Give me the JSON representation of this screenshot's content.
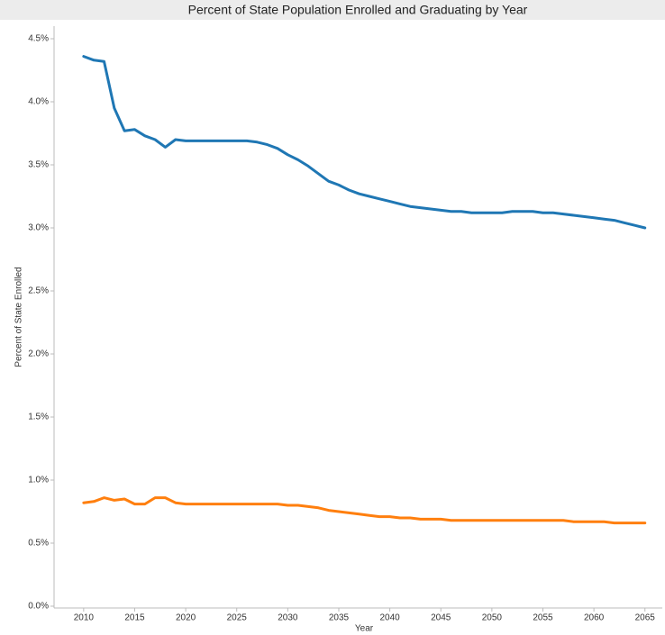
{
  "chart_data": {
    "type": "line",
    "title": "Percent of State Population Enrolled and Graduating by Year",
    "x_label": "Year",
    "y_label": "Percent of State Enrolled",
    "x": [
      2010,
      2011,
      2012,
      2013,
      2014,
      2015,
      2016,
      2017,
      2018,
      2019,
      2020,
      2021,
      2022,
      2023,
      2024,
      2025,
      2026,
      2027,
      2028,
      2029,
      2030,
      2031,
      2032,
      2033,
      2034,
      2035,
      2036,
      2037,
      2038,
      2039,
      2040,
      2041,
      2042,
      2043,
      2044,
      2045,
      2046,
      2047,
      2048,
      2049,
      2050,
      2051,
      2052,
      2053,
      2054,
      2055,
      2056,
      2057,
      2058,
      2059,
      2060,
      2061,
      2062,
      2063,
      2064,
      2065
    ],
    "series": [
      {
        "color": "#1f77b4",
        "values": [
          4.36,
          4.33,
          4.32,
          3.95,
          3.77,
          3.78,
          3.73,
          3.7,
          3.64,
          3.7,
          3.69,
          3.69,
          3.69,
          3.69,
          3.69,
          3.69,
          3.69,
          3.68,
          3.66,
          3.63,
          3.58,
          3.54,
          3.49,
          3.43,
          3.37,
          3.34,
          3.3,
          3.27,
          3.25,
          3.23,
          3.21,
          3.19,
          3.17,
          3.16,
          3.15,
          3.14,
          3.13,
          3.13,
          3.12,
          3.12,
          3.12,
          3.12,
          3.13,
          3.13,
          3.13,
          3.12,
          3.12,
          3.11,
          3.1,
          3.09,
          3.08,
          3.07,
          3.06,
          3.04,
          3.02,
          3.0
        ]
      },
      {
        "color": "#ff7f0e",
        "values": [
          0.82,
          0.83,
          0.86,
          0.84,
          0.85,
          0.81,
          0.81,
          0.86,
          0.86,
          0.82,
          0.81,
          0.81,
          0.81,
          0.81,
          0.81,
          0.81,
          0.81,
          0.81,
          0.81,
          0.81,
          0.8,
          0.8,
          0.79,
          0.78,
          0.76,
          0.75,
          0.74,
          0.73,
          0.72,
          0.71,
          0.71,
          0.7,
          0.7,
          0.69,
          0.69,
          0.69,
          0.68,
          0.68,
          0.68,
          0.68,
          0.68,
          0.68,
          0.68,
          0.68,
          0.68,
          0.68,
          0.68,
          0.68,
          0.67,
          0.67,
          0.67,
          0.67,
          0.66,
          0.66,
          0.66,
          0.66
        ]
      }
    ],
    "xlim": [
      2007.1,
      2066.7
    ],
    "ylim": [
      0,
      4.6
    ],
    "xticks": [
      2010,
      2015,
      2020,
      2025,
      2030,
      2035,
      2040,
      2045,
      2050,
      2055,
      2060,
      2065
    ],
    "yticks": [
      {
        "value": 0,
        "label": "0.0%"
      },
      {
        "value": 0.5,
        "label": "0.5%"
      },
      {
        "value": 1,
        "label": "1.0%"
      },
      {
        "value": 1.5,
        "label": "1.5%"
      },
      {
        "value": 2,
        "label": "2.0%"
      },
      {
        "value": 2.5,
        "label": "2.5%"
      },
      {
        "value": 3,
        "label": "3.0%"
      },
      {
        "value": 3.5,
        "label": "3.5%"
      },
      {
        "value": 4,
        "label": "4.0%"
      },
      {
        "value": 4.5,
        "label": "4.5%"
      }
    ],
    "grid": false
  }
}
